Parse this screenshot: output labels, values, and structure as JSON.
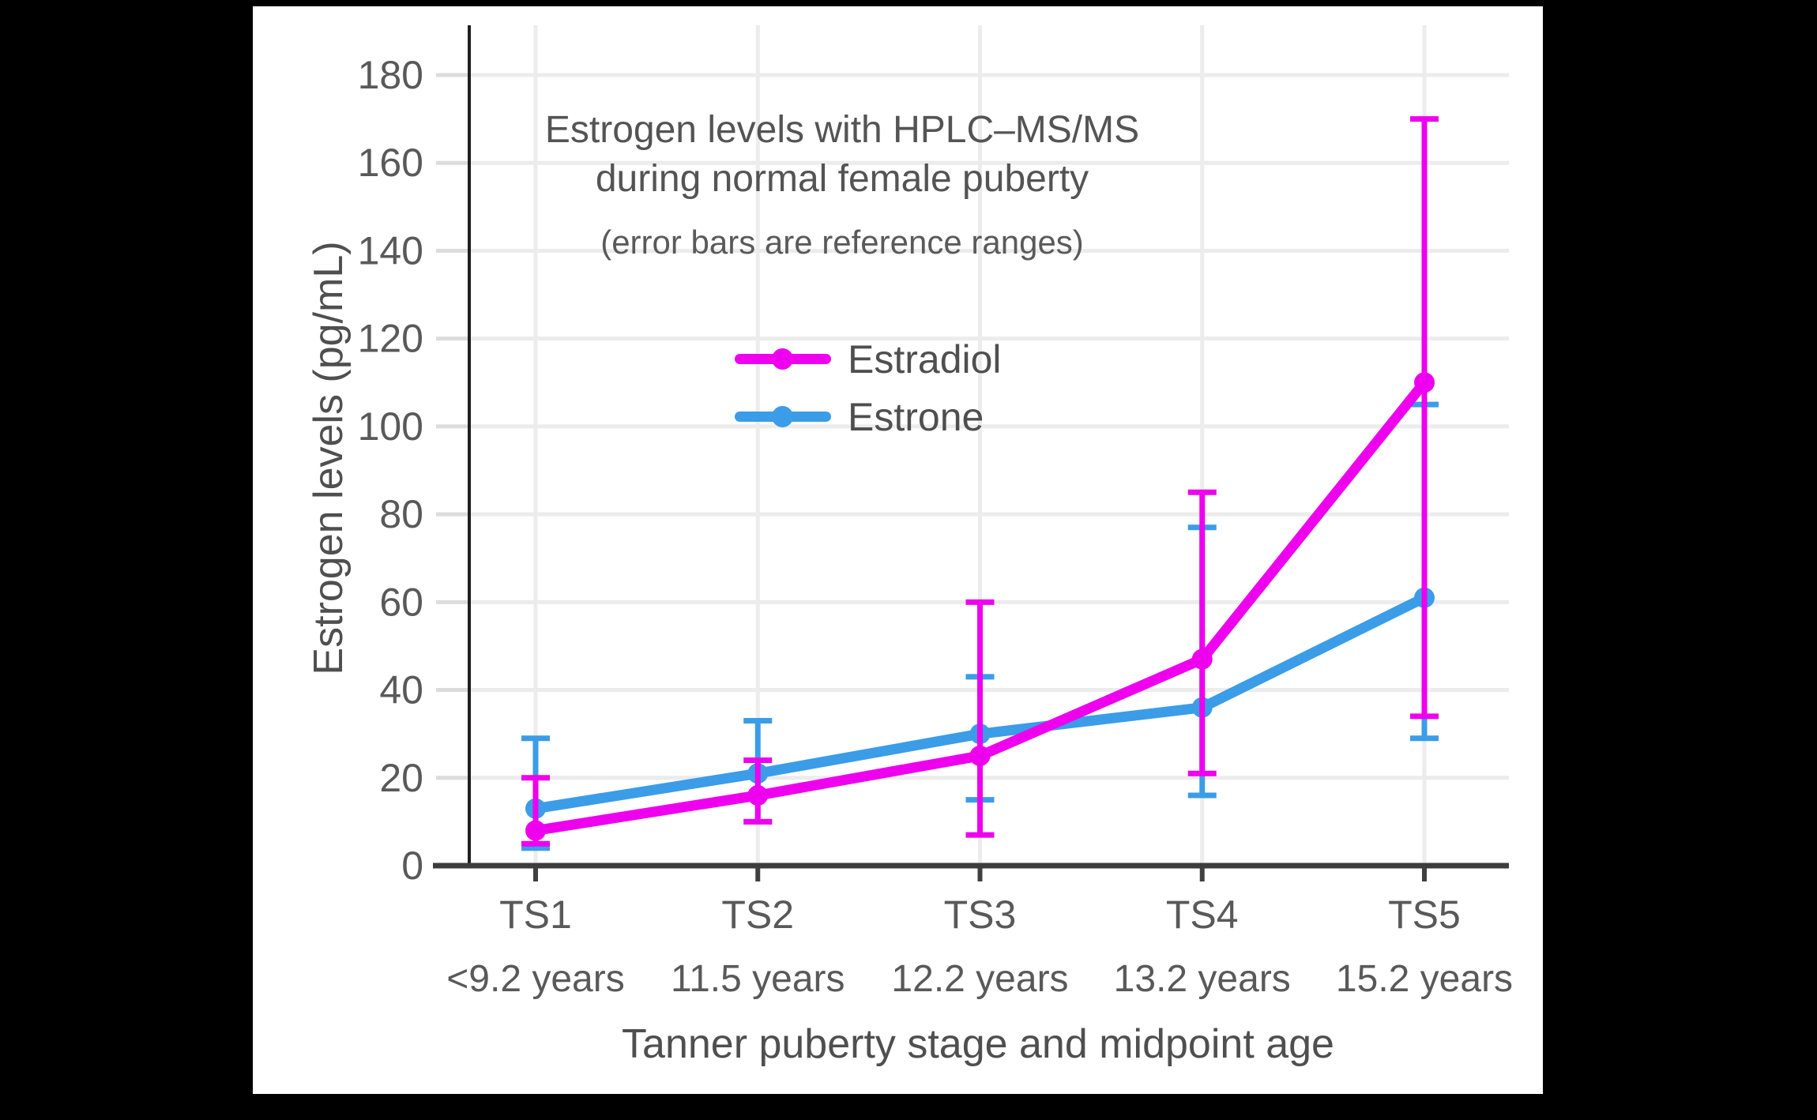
{
  "chart_data": {
    "type": "line",
    "title": "Estrogen levels with HPLC–MS/MS",
    "title_line2": "during normal female puberty",
    "subtitle": "(error bars are reference ranges)",
    "xlabel": "Tanner puberty stage and midpoint age",
    "ylabel": "Estrogen levels (pg/mL)",
    "ylim": [
      0,
      180
    ],
    "ytick_step": 20,
    "ytick_labels": [
      "0",
      "20",
      "40",
      "60",
      "80",
      "100",
      "120",
      "140",
      "160",
      "180"
    ],
    "grid": true,
    "legend_position": "inside-upper-left",
    "error_bar_meaning": "reference ranges",
    "categories": [
      "TS1",
      "TS2",
      "TS3",
      "TS4",
      "TS5"
    ],
    "category_sublabels": [
      "<9.2 years",
      "11.5 years",
      "12.2 years",
      "13.2 years",
      "15.2 years"
    ],
    "series": [
      {
        "name": "Estradiol",
        "color": "#EE00EE",
        "values": [
          8,
          16,
          25,
          47,
          110
        ],
        "ref_range_low": [
          5,
          10,
          7,
          21,
          34
        ],
        "ref_range_high": [
          20,
          24,
          60,
          85,
          170
        ]
      },
      {
        "name": "Estrone",
        "color": "#3B9CE8",
        "values": [
          13,
          21,
          30,
          36,
          61
        ],
        "ref_range_low": [
          4,
          10,
          15,
          16,
          29
        ],
        "ref_range_high": [
          29,
          33,
          43,
          77,
          105
        ]
      }
    ],
    "colors": {
      "background": "#000000",
      "panel": "#ffffff",
      "gridline": "#ececec",
      "axis_line": "#3d3d3d",
      "text": "#595959"
    }
  }
}
